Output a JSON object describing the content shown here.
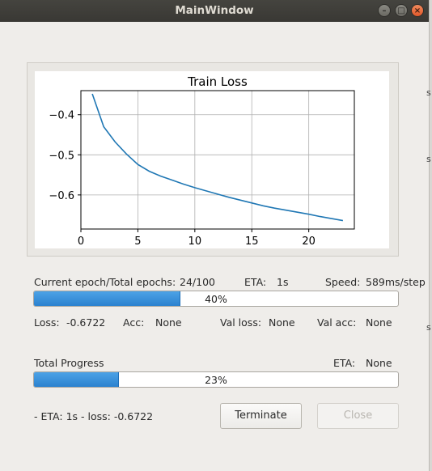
{
  "window": {
    "title": "MainWindow"
  },
  "chart_data": {
    "type": "line",
    "title": "Train Loss",
    "xlabel": "",
    "ylabel": "",
    "xlim": [
      0,
      24
    ],
    "ylim": [
      -0.685,
      -0.34
    ],
    "xticks": [
      0,
      5,
      10,
      15,
      20
    ],
    "yticks": [
      -0.4,
      -0.5,
      -0.6
    ],
    "grid": true,
    "series": [
      {
        "color": "#1f77b4",
        "x": [
          1,
          2,
          3,
          4,
          5,
          6,
          7,
          8,
          9,
          10,
          11,
          12,
          13,
          14,
          15,
          16,
          17,
          18,
          19,
          20,
          21,
          22,
          23
        ],
        "y": [
          -0.348,
          -0.43,
          -0.468,
          -0.498,
          -0.524,
          -0.541,
          -0.553,
          -0.563,
          -0.573,
          -0.582,
          -0.59,
          -0.598,
          -0.606,
          -0.613,
          -0.62,
          -0.627,
          -0.633,
          -0.638,
          -0.643,
          -0.648,
          -0.654,
          -0.659,
          -0.664
        ]
      }
    ]
  },
  "epoch": {
    "label": "Current epoch/Total epochs:",
    "value": "24/100",
    "eta_label": "ETA:",
    "eta_value": "1s",
    "speed_label": "Speed:",
    "speed_value": "589ms/step",
    "progress": 40,
    "progress_text": "40%"
  },
  "metrics": {
    "loss_label": "Loss:",
    "loss_value": "-0.6722",
    "acc_label": "Acc:",
    "acc_value": "None",
    "val_loss_label": "Val loss:",
    "val_loss_value": "None",
    "val_acc_label": "Val acc:",
    "val_acc_value": "None"
  },
  "total": {
    "label": "Total Progress",
    "eta_label": "ETA:",
    "eta_value": "None",
    "progress": 23,
    "progress_text": "23%"
  },
  "status": {
    "text": " - ETA: 1s - loss: -0.6722"
  },
  "buttons": {
    "terminate": "Terminate",
    "close": "Close"
  }
}
